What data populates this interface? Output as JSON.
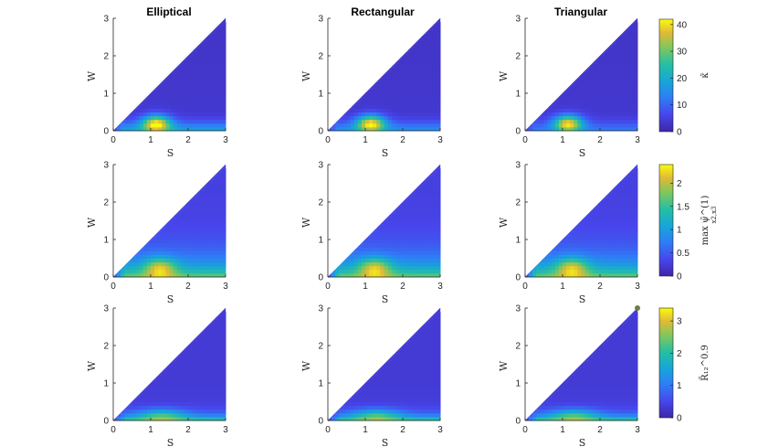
{
  "column_titles": [
    "Elliptical",
    "Rectangular",
    "Triangular"
  ],
  "chart_data": {
    "type": "heatmap",
    "layout": "3x3 grid of filled contour plots on triangular domain W <= S, each row shares a colorbar",
    "xlabel": "S",
    "ylabel": "W",
    "xlim": [
      0,
      3
    ],
    "ylim": [
      0,
      3
    ],
    "xticks": [
      "0",
      "1",
      "2",
      "3"
    ],
    "yticks": [
      "0",
      "1",
      "2",
      "3"
    ],
    "colormap": "parula",
    "rows": [
      {
        "colorbar_label": "κ̄",
        "clim": [
          0,
          42
        ],
        "colorbar_ticks": [
          "0",
          "10",
          "20",
          "30",
          "40"
        ],
        "colorbar_tick_values": [
          0,
          10,
          20,
          30,
          40
        ],
        "peak": {
          "S": 1.15,
          "W": 0.2,
          "value": 42
        }
      },
      {
        "colorbar_label": "max ψ̄^(1)",
        "colorbar_label_sub": "x2,x3",
        "clim": [
          0,
          2.4
        ],
        "colorbar_ticks": [
          "0",
          "0.5",
          "1",
          "1.5",
          "2"
        ],
        "colorbar_tick_values": [
          0,
          0.5,
          1,
          1.5,
          2
        ],
        "peak": {
          "S": 1.25,
          "W": 0.25,
          "value": 2.4
        }
      },
      {
        "colorbar_label": "R̄₁₂^0.9",
        "clim": [
          0,
          3.4
        ],
        "colorbar_ticks": [
          "0",
          "1",
          "2",
          "3"
        ],
        "colorbar_tick_values": [
          0,
          1,
          2,
          3
        ],
        "peak": {
          "S": 1.3,
          "W": 0.15,
          "value": 3.3
        }
      }
    ],
    "series": [
      {
        "panel": "row1-Elliptical"
      },
      {
        "panel": "row1-Rectangular"
      },
      {
        "panel": "row1-Triangular"
      },
      {
        "panel": "row2-Elliptical"
      },
      {
        "panel": "row2-Rectangular"
      },
      {
        "panel": "row2-Triangular"
      },
      {
        "panel": "row3-Elliptical"
      },
      {
        "panel": "row3-Rectangular"
      },
      {
        "panel": "row3-Triangular"
      }
    ],
    "annotations": [
      {
        "panel": "row3-Triangular",
        "marker": "dot",
        "S": 3,
        "W": 3,
        "color": "#6f7f3f"
      }
    ]
  }
}
